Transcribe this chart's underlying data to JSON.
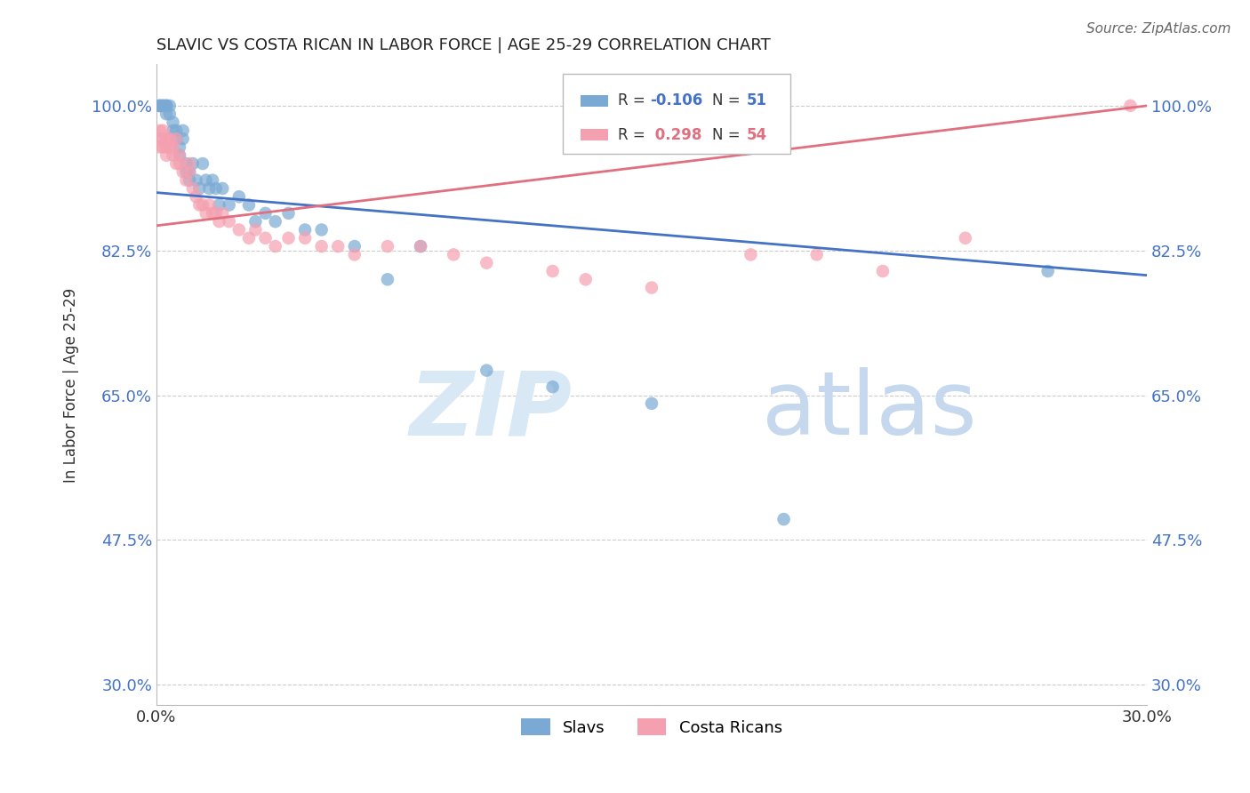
{
  "title": "SLAVIC VS COSTA RICAN IN LABOR FORCE | AGE 25-29 CORRELATION CHART",
  "source": "Source: ZipAtlas.com",
  "ylabel": "In Labor Force | Age 25-29",
  "xlim": [
    0.0,
    0.3
  ],
  "ylim": [
    0.275,
    1.05
  ],
  "yticks": [
    0.3,
    0.475,
    0.65,
    0.825,
    1.0
  ],
  "ytick_labels": [
    "30.0%",
    "47.5%",
    "65.0%",
    "82.5%",
    "100.0%"
  ],
  "xtick_labels": [
    "0.0%",
    "30.0%"
  ],
  "xticks": [
    0.0,
    0.3
  ],
  "legend_R_slavs": "-0.106",
  "legend_N_slavs": "51",
  "legend_R_costa": "0.298",
  "legend_N_costa": "54",
  "slavs_color": "#7aaad4",
  "costa_color": "#f4a0b0",
  "trend_slavs_color": "#4472c4",
  "trend_costa_color": "#e07080",
  "background_color": "#ffffff",
  "grid_color": "#cccccc",
  "slavs_x": [
    0.001,
    0.001,
    0.001,
    0.002,
    0.002,
    0.002,
    0.003,
    0.003,
    0.003,
    0.003,
    0.004,
    0.004,
    0.005,
    0.005,
    0.006,
    0.006,
    0.007,
    0.007,
    0.008,
    0.008,
    0.009,
    0.009,
    0.01,
    0.01,
    0.011,
    0.012,
    0.013,
    0.014,
    0.015,
    0.016,
    0.017,
    0.018,
    0.019,
    0.02,
    0.022,
    0.025,
    0.028,
    0.03,
    0.033,
    0.036,
    0.04,
    0.045,
    0.05,
    0.06,
    0.07,
    0.08,
    0.1,
    0.12,
    0.15,
    0.19,
    0.27
  ],
  "slavs_y": [
    1.0,
    1.0,
    1.0,
    1.0,
    1.0,
    1.0,
    1.0,
    1.0,
    1.0,
    0.99,
    1.0,
    0.99,
    0.98,
    0.97,
    0.96,
    0.97,
    0.95,
    0.94,
    0.97,
    0.96,
    0.93,
    0.92,
    0.92,
    0.91,
    0.93,
    0.91,
    0.9,
    0.93,
    0.91,
    0.9,
    0.91,
    0.9,
    0.88,
    0.9,
    0.88,
    0.89,
    0.88,
    0.86,
    0.87,
    0.86,
    0.87,
    0.85,
    0.85,
    0.83,
    0.79,
    0.83,
    0.68,
    0.66,
    0.64,
    0.5,
    0.8
  ],
  "costa_x": [
    0.001,
    0.001,
    0.001,
    0.002,
    0.002,
    0.002,
    0.003,
    0.003,
    0.003,
    0.004,
    0.004,
    0.005,
    0.005,
    0.006,
    0.006,
    0.007,
    0.007,
    0.008,
    0.009,
    0.01,
    0.01,
    0.011,
    0.012,
    0.013,
    0.014,
    0.015,
    0.016,
    0.017,
    0.018,
    0.019,
    0.02,
    0.022,
    0.025,
    0.028,
    0.03,
    0.033,
    0.036,
    0.04,
    0.045,
    0.05,
    0.055,
    0.06,
    0.07,
    0.08,
    0.09,
    0.1,
    0.12,
    0.13,
    0.15,
    0.18,
    0.2,
    0.22,
    0.245,
    0.295
  ],
  "costa_y": [
    0.97,
    0.96,
    0.95,
    0.97,
    0.96,
    0.95,
    0.96,
    0.95,
    0.94,
    0.95,
    0.96,
    0.95,
    0.94,
    0.96,
    0.93,
    0.94,
    0.93,
    0.92,
    0.91,
    0.93,
    0.92,
    0.9,
    0.89,
    0.88,
    0.88,
    0.87,
    0.88,
    0.87,
    0.87,
    0.86,
    0.87,
    0.86,
    0.85,
    0.84,
    0.85,
    0.84,
    0.83,
    0.84,
    0.84,
    0.83,
    0.83,
    0.82,
    0.83,
    0.83,
    0.82,
    0.81,
    0.8,
    0.79,
    0.78,
    0.82,
    0.82,
    0.8,
    0.84,
    1.0
  ],
  "trend_slavs_x0": 0.0,
  "trend_slavs_y0": 0.895,
  "trend_slavs_x1": 0.3,
  "trend_slavs_y1": 0.795,
  "trend_costa_x0": 0.0,
  "trend_costa_y0": 0.855,
  "trend_costa_x1": 0.3,
  "trend_costa_y1": 1.0
}
